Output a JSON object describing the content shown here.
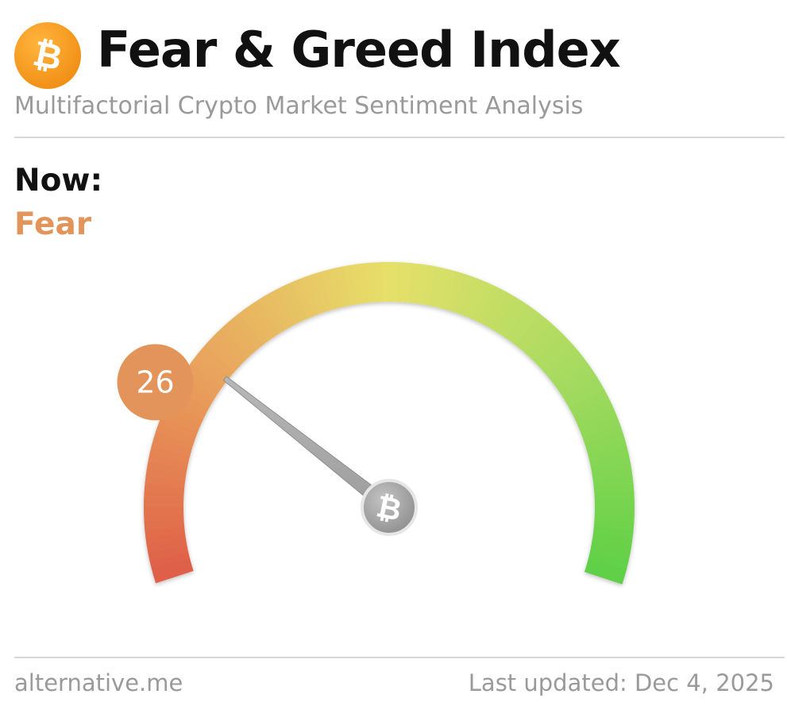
{
  "header": {
    "title": "Fear & Greed Index",
    "subtitle": "Multifactorial Crypto Market Sentiment Analysis",
    "logo_icon": "bitcoin-icon",
    "logo_color": "#f7931a"
  },
  "status": {
    "now_label": "Now:",
    "classification": "Fear",
    "classification_color": "#e3945a"
  },
  "gauge": {
    "value": 26,
    "value_text": "26",
    "min": 0,
    "max": 100,
    "badge_color": "#e3945a",
    "needle_hub_icon": "bitcoin-icon",
    "scale_colors": [
      "#df5f48",
      "#e9a25c",
      "#e6e06a",
      "#a6db60",
      "#5fd046"
    ]
  },
  "footer": {
    "source": "alternative.me",
    "last_updated": "Last updated: Dec 4, 2025"
  }
}
